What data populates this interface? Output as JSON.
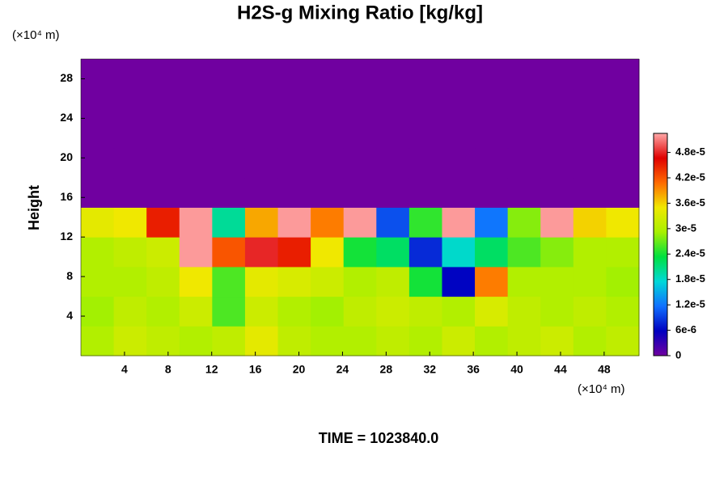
{
  "chart_data": {
    "type": "heatmap",
    "title": "H2S-g Mixing Ratio [kg/kg]",
    "x_unit": "(×10⁴ m)",
    "y_unit": "(×10⁴ m)",
    "y_label": "Height",
    "footer": "TIME = 1023840.0",
    "xlim": [
      0,
      51.2
    ],
    "ylim": [
      0,
      30
    ],
    "xticks": [
      4,
      8,
      12,
      16,
      20,
      24,
      28,
      32,
      36,
      40,
      44,
      48
    ],
    "yticks": [
      4,
      8,
      12,
      16,
      20,
      24,
      28
    ],
    "zlim": [
      0,
      5.25e-05
    ],
    "zticks": [
      0,
      {
        "value": 6e-06,
        "label": "6e-6"
      },
      {
        "value": 1.2e-05,
        "label": "1.2e-5"
      },
      {
        "value": 1.8e-05,
        "label": "1.8e-5"
      },
      {
        "value": 2.4e-05,
        "label": "2.4e-5"
      },
      {
        "value": 3e-05,
        "label": "3e-5"
      },
      {
        "value": 3.6e-05,
        "label": "3.6e-5"
      },
      {
        "value": 4.2e-05,
        "label": "4.2e-5"
      },
      {
        "value": 4.8e-05,
        "label": "4.8e-5"
      }
    ],
    "colormap": [
      "#7000a0",
      "#0000c0",
      "#1070ff",
      "#00d8d8",
      "#00e040",
      "#a8f000",
      "#f0e800",
      "#ff6a00",
      "#e00000",
      "#ffa8a8"
    ],
    "z": [
      [
        3e-05,
        3.2e-05,
        3.1e-05,
        3e-05,
        3.1e-05,
        3.4e-05,
        3.1e-05,
        3e-05,
        3e-05,
        3.1e-05,
        3e-05,
        3.2e-05,
        3e-05,
        3.1e-05,
        3.2e-05,
        3e-05,
        3.1e-05
      ],
      [
        2.9e-05,
        3.1e-05,
        3e-05,
        3.2e-05,
        2.6e-05,
        3.2e-05,
        3e-05,
        2.9e-05,
        3.1e-05,
        3.2e-05,
        3.1e-05,
        3e-05,
        3.3e-05,
        3.1e-05,
        3e-05,
        3.1e-05,
        3e-05
      ],
      [
        3e-05,
        3e-05,
        3.1e-05,
        3.5e-05,
        2.6e-05,
        3.4e-05,
        3.3e-05,
        3.2e-05,
        3e-05,
        3.1e-05,
        2.4e-05,
        6e-06,
        4e-05,
        3e-05,
        3e-05,
        3e-05,
        2.9e-05
      ],
      [
        3e-05,
        3.1e-05,
        3.2e-05,
        5.2e-05,
        4.2e-05,
        4.8e-05,
        4.5e-05,
        3.5e-05,
        2.4e-05,
        2.2e-05,
        8e-06,
        1.8e-05,
        2.2e-05,
        2.6e-05,
        2.8e-05,
        3e-05,
        3e-05
      ],
      [
        3.4e-05,
        3.5e-05,
        4.5e-05,
        5.2e-05,
        2e-05,
        3.8e-05,
        5.2e-05,
        4e-05,
        5.2e-05,
        1e-05,
        2.5e-05,
        5.2e-05,
        1.2e-05,
        2.8e-05,
        5.2e-05,
        3.6e-05,
        3.5e-05
      ],
      [
        0,
        0,
        0,
        0,
        0,
        0,
        0,
        0,
        0,
        0,
        0,
        0,
        0,
        0,
        0,
        0,
        0
      ],
      [
        0,
        0,
        0,
        0,
        0,
        0,
        0,
        0,
        0,
        0,
        0,
        0,
        0,
        0,
        0,
        0,
        0
      ],
      [
        0,
        0,
        0,
        0,
        0,
        0,
        0,
        0,
        0,
        0,
        0,
        0,
        0,
        0,
        0,
        0,
        0
      ],
      [
        0,
        0,
        0,
        0,
        0,
        0,
        0,
        0,
        0,
        0,
        0,
        0,
        0,
        0,
        0,
        0,
        0
      ],
      [
        0,
        0,
        0,
        0,
        0,
        0,
        0,
        0,
        0,
        0,
        0,
        0,
        0,
        0,
        0,
        0,
        0
      ]
    ]
  }
}
